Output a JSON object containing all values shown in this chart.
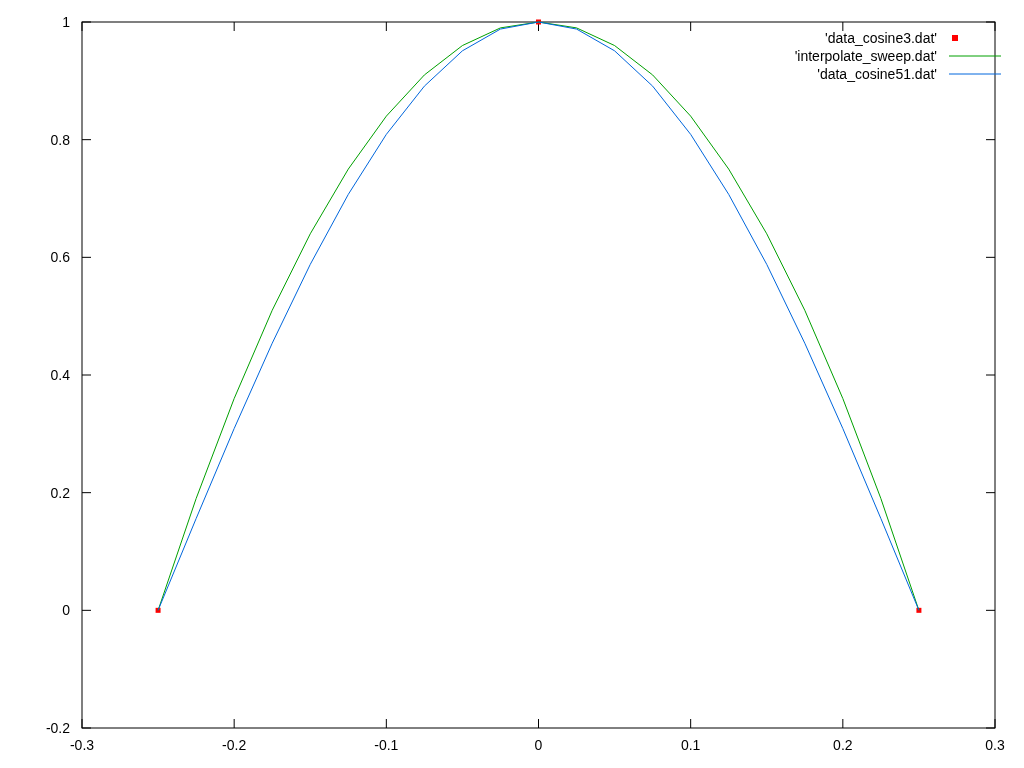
{
  "chart_data": {
    "type": "line",
    "xlim": [
      -0.3,
      0.3
    ],
    "ylim": [
      -0.2,
      1
    ],
    "xticks": [
      -0.3,
      -0.2,
      -0.1,
      0,
      0.1,
      0.2,
      0.3
    ],
    "yticks": [
      -0.2,
      0,
      0.2,
      0.4,
      0.6,
      0.8,
      1
    ],
    "grid": false,
    "legend": "top right",
    "series": [
      {
        "name": "'data_cosine3.dat'",
        "type": "scatter",
        "marker": "square",
        "color": "#ff0000",
        "x": [
          -0.25,
          0,
          0.25
        ],
        "values": [
          0,
          1,
          0
        ]
      },
      {
        "name": "'interpolate_sweep.dat'",
        "marker": "none",
        "color": "#00a000",
        "x": [
          -0.25,
          -0.225,
          -0.2,
          -0.175,
          -0.15,
          -0.125,
          -0.1,
          -0.075,
          -0.05,
          -0.025,
          0,
          0.025,
          0.05,
          0.075,
          0.1,
          0.125,
          0.15,
          0.175,
          0.2,
          0.225,
          0.25
        ],
        "values": [
          0,
          0.19,
          0.36,
          0.51,
          0.64,
          0.75,
          0.84,
          0.91,
          0.96,
          0.99,
          1,
          0.99,
          0.96,
          0.91,
          0.84,
          0.75,
          0.64,
          0.51,
          0.36,
          0.19,
          0
        ]
      },
      {
        "name": "'data_cosine51.dat'",
        "marker": "none",
        "color": "#0066dd",
        "x": [
          -0.25,
          -0.225,
          -0.2,
          -0.175,
          -0.15,
          -0.125,
          -0.1,
          -0.075,
          -0.05,
          -0.025,
          0,
          0.025,
          0.05,
          0.075,
          0.1,
          0.125,
          0.15,
          0.175,
          0.2,
          0.225,
          0.25
        ],
        "values": [
          0,
          0.156,
          0.309,
          0.454,
          0.588,
          0.707,
          0.809,
          0.891,
          0.951,
          0.988,
          1,
          0.988,
          0.951,
          0.891,
          0.809,
          0.707,
          0.588,
          0.454,
          0.309,
          0.156,
          0
        ]
      }
    ]
  }
}
